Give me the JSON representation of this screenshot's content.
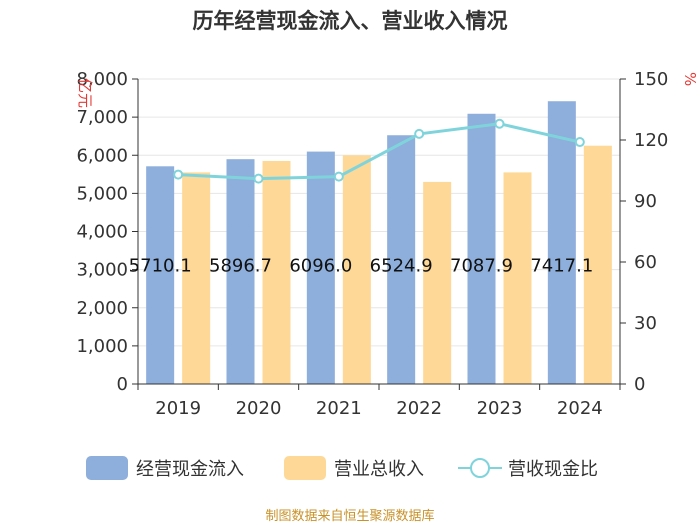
{
  "chart_data": {
    "type": "bar",
    "title": "历年经营现金流入、营业收入情况",
    "categories": [
      "2019",
      "2020",
      "2021",
      "2022",
      "2023",
      "2024"
    ],
    "series": [
      {
        "name": "经营现金流入",
        "type": "bar",
        "axis": "left",
        "color": "#8eaedb",
        "values": [
          5710.1,
          5896.7,
          6096.0,
          6524.9,
          7087.9,
          7417.1
        ],
        "labels": [
          "5710.1",
          "5896.7",
          "6096.0",
          "6524.9",
          "7087.9",
          "7417.1"
        ]
      },
      {
        "name": "营业总收入",
        "type": "bar",
        "axis": "left",
        "color": "#fdd896",
        "values": [
          5550,
          5850,
          6000,
          5300,
          5550,
          6250
        ]
      },
      {
        "name": "营收现金比",
        "type": "line",
        "axis": "right",
        "color": "#7fd4dc",
        "values": [
          103,
          101,
          102,
          123,
          128,
          119
        ]
      }
    ],
    "y_left": {
      "unit": "亿元",
      "min": 0,
      "max": 8000,
      "ticks": [
        "0",
        "1,000",
        "2,000",
        "3,000",
        "4,000",
        "5,000",
        "6,000",
        "7,000",
        "8,000"
      ]
    },
    "y_right": {
      "unit": "%",
      "min": 0,
      "max": 150,
      "ticks": [
        "0",
        "30",
        "60",
        "90",
        "120",
        "150"
      ]
    },
    "legend": [
      "经营现金流入",
      "营业总收入",
      "营收现金比"
    ],
    "legend_position": "bottom",
    "grid": true,
    "source": "制图数据来自恒生聚源数据库"
  }
}
